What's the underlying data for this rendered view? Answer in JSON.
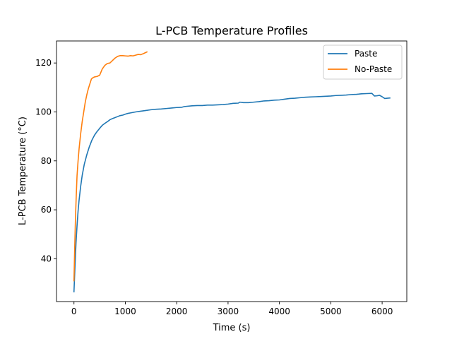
{
  "chart_data": {
    "type": "line",
    "title": "L-PCB Temperature Profiles",
    "xlabel": "Time (s)",
    "ylabel": "L-PCB Temperature (°C)",
    "xlim": [
      -340,
      6480
    ],
    "ylim": [
      22.5,
      129
    ],
    "xticks": [
      0,
      1000,
      2000,
      3000,
      4000,
      5000,
      6000
    ],
    "yticks": [
      40,
      60,
      80,
      100,
      120
    ],
    "grid": false,
    "legend": {
      "placement": "top-right"
    },
    "series": [
      {
        "name": "Paste",
        "color": "#1f77b4",
        "x": [
          0,
          20,
          40,
          60,
          80,
          100,
          130,
          160,
          200,
          250,
          300,
          350,
          400,
          450,
          500,
          550,
          600,
          650,
          700,
          750,
          800,
          850,
          900,
          950,
          1000,
          1050,
          1100,
          1200,
          1300,
          1400,
          1500,
          1600,
          1700,
          1800,
          1900,
          2000,
          2100,
          2150,
          2200,
          2300,
          2400,
          2500,
          2600,
          2700,
          2800,
          2900,
          3000,
          3100,
          3200,
          3230,
          3300,
          3400,
          3500,
          3600,
          3700,
          3800,
          3900,
          4000,
          4100,
          4200,
          4300,
          4400,
          4500,
          4600,
          4700,
          4800,
          4900,
          5000,
          5100,
          5200,
          5300,
          5400,
          5500,
          5600,
          5700,
          5800,
          5850,
          5900,
          5950,
          6000,
          6050,
          6100,
          6150
        ],
        "values": [
          26.5,
          37,
          46.5,
          53.5,
          59.5,
          64,
          69.5,
          74,
          78.5,
          82.5,
          85.8,
          88.5,
          90.5,
          92,
          93.3,
          94.5,
          95.3,
          96,
          96.8,
          97.3,
          97.7,
          98.1,
          98.5,
          98.7,
          99.1,
          99.4,
          99.6,
          100,
          100.3,
          100.6,
          100.9,
          101.1,
          101.2,
          101.4,
          101.6,
          101.8,
          101.9,
          102.2,
          102.3,
          102.5,
          102.6,
          102.6,
          102.8,
          102.8,
          102.9,
          103,
          103.2,
          103.5,
          103.6,
          104,
          103.8,
          103.8,
          104,
          104.2,
          104.5,
          104.6,
          104.8,
          104.9,
          105.2,
          105.5,
          105.6,
          105.8,
          106,
          106.1,
          106.2,
          106.3,
          106.4,
          106.5,
          106.7,
          106.8,
          106.9,
          107.1,
          107.2,
          107.4,
          107.5,
          107.6,
          106.5,
          106.6,
          106.8,
          106.2,
          105.5,
          105.6,
          105.7
        ]
      },
      {
        "name": "No-Paste",
        "color": "#ff7f0e",
        "x": [
          0,
          15,
          30,
          45,
          60,
          80,
          100,
          130,
          160,
          190,
          220,
          250,
          280,
          310,
          340,
          370,
          400,
          450,
          500,
          550,
          600,
          650,
          700,
          750,
          800,
          850,
          900,
          950,
          1000,
          1050,
          1100,
          1150,
          1200,
          1250,
          1300,
          1350,
          1400,
          1420
        ],
        "values": [
          31,
          45,
          57,
          66,
          74,
          80,
          85,
          91,
          96,
          100,
          104,
          107,
          109.5,
          111.5,
          113.5,
          114,
          114.3,
          114.5,
          115,
          117.5,
          119,
          119.8,
          120,
          121,
          122,
          122.7,
          123,
          123,
          122.9,
          122.8,
          123,
          122.9,
          123.2,
          123.5,
          123.4,
          123.8,
          124.3,
          124.5
        ]
      }
    ]
  }
}
